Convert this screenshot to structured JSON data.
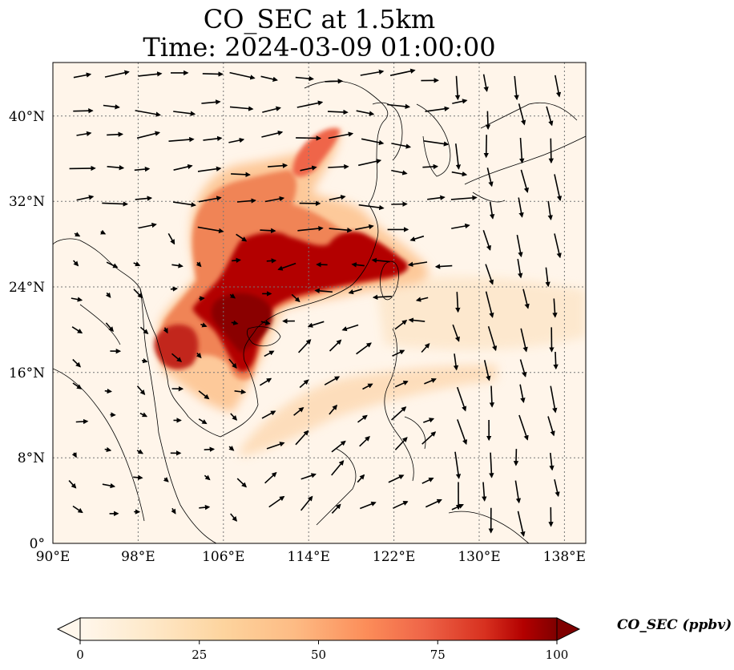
{
  "title": "CO_SEC at 1.5km",
  "subtitle": "Time: 2024-03-09 01:00:00",
  "map": {
    "lon_range": [
      90,
      140
    ],
    "lat_range": [
      0,
      45
    ],
    "lon_ticks": [
      "90°E",
      "98°E",
      "106°E",
      "114°E",
      "122°E",
      "130°E",
      "138°E"
    ],
    "lat_ticks": [
      "0°",
      "8°N",
      "16°N",
      "24°N",
      "32°N",
      "40°N"
    ],
    "gridlines": true,
    "colormap": "OrRd",
    "colors": {
      "low": "#fff7ec",
      "mid": "#fdbb84",
      "high": "#7f0000"
    }
  },
  "colorbar": {
    "label": "CO_SEC (ppbv)",
    "ticks": [
      "0",
      "25",
      "50",
      "75",
      "100"
    ],
    "range": [
      0,
      100
    ],
    "extend": "both"
  }
}
